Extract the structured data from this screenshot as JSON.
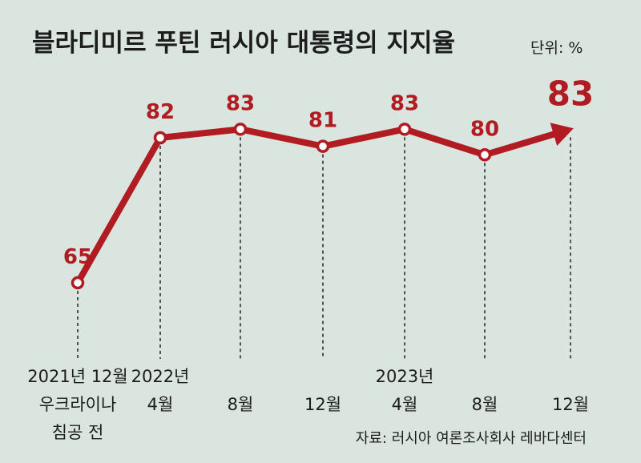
{
  "chart_data": {
    "type": "line",
    "title": "블라디미르 푸틴 러시아 대통령의 지지율",
    "unit_label": "단위: %",
    "source": "자료: 러시아 여론조사회사 레바다센터",
    "categories": [
      [
        "2021년 12월",
        "우크라이나",
        "침공 전"
      ],
      [
        "2022년",
        "4월"
      ],
      [
        "8월"
      ],
      [
        "12월"
      ],
      [
        "2023년",
        "4월"
      ],
      [
        "8월"
      ],
      [
        "12월"
      ]
    ],
    "values": [
      65,
      82,
      83,
      81,
      83,
      80,
      83
    ],
    "value_labels": [
      "65",
      "82",
      "83",
      "81",
      "83",
      "80",
      "83"
    ],
    "series_color": "#b01c22",
    "background": "#d9e5de",
    "grid": false,
    "last_point_style": "arrow"
  }
}
